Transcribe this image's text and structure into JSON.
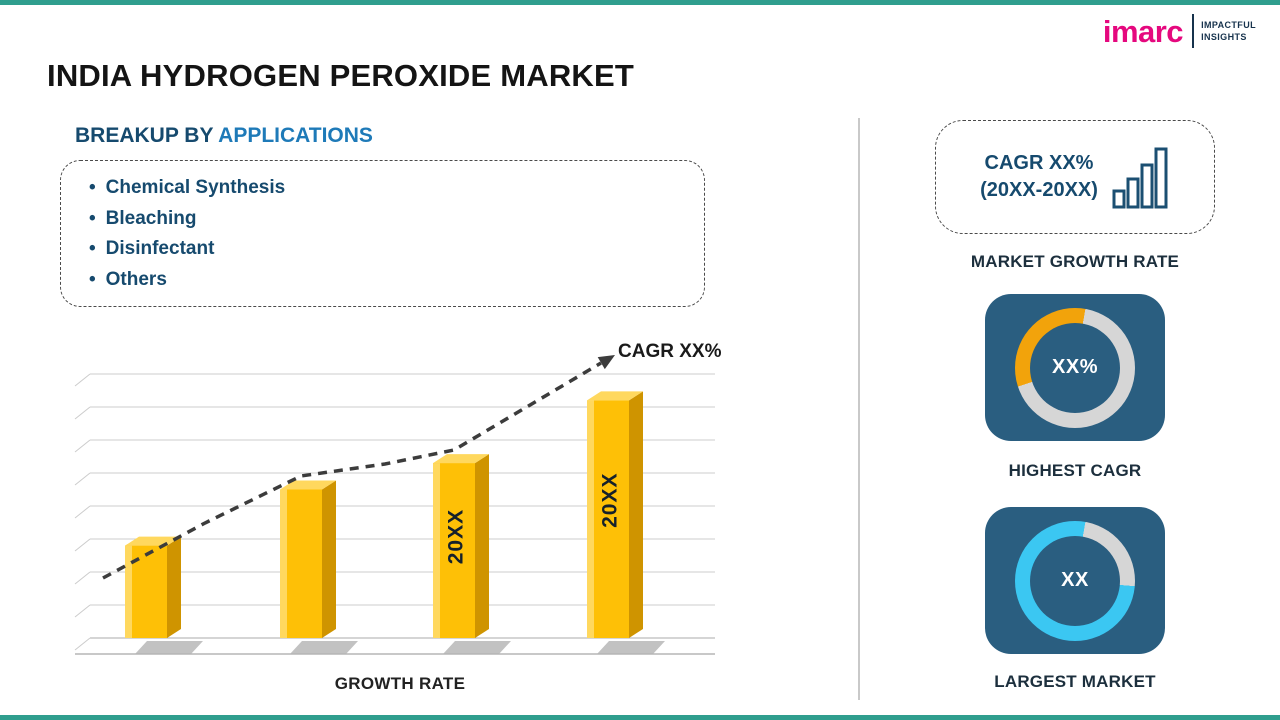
{
  "page": {
    "title": "INDIA HYDROGEN PEROXIDE MARKET"
  },
  "logo": {
    "brand": "imarc",
    "tagline_line1": "IMPACTFUL",
    "tagline_line2": "INSIGHTS"
  },
  "breakup": {
    "heading_prefix": "BREAKUP BY ",
    "heading_highlight": "APPLICATIONS",
    "items": [
      "Chemical Synthesis",
      "Bleaching",
      "Disinfectant",
      "Others"
    ]
  },
  "chart_data": {
    "type": "bar",
    "title": "",
    "xlabel": "GROWTH RATE",
    "ylabel": "",
    "categories": [
      "",
      "",
      "20XX",
      "20XX"
    ],
    "values": [
      28,
      45,
      53,
      72
    ],
    "values_note": "relative heights, no numeric axis shown in source",
    "bar_labels": [
      "",
      "",
      "20XX",
      "20XX"
    ],
    "trend_label": "CAGR XX%",
    "ylim": [
      0,
      80
    ],
    "grid": true,
    "legend": false
  },
  "sidebar": {
    "cagr_box": {
      "line1": "CAGR XX%",
      "line2": "(20XX-20XX)"
    },
    "market_growth_rate_label": "MARKET GROWTH RATE",
    "highest_cagr": {
      "value": "XX%",
      "label": "HIGHEST CAGR",
      "arc_color": "#F2A30B",
      "ring_color": "#D6D6D6",
      "arc_from_deg": 252,
      "arc_sweep_deg": 118
    },
    "largest_market": {
      "value": "XX",
      "label": "LARGEST MARKET",
      "arc_color": "#D6D6D6",
      "ring_color": "#3BC7F2",
      "arc_from_deg": 10,
      "arc_sweep_deg": 85
    }
  },
  "colors": {
    "accent_teal": "#2F9E8E",
    "brand_magenta": "#E5087E",
    "navy": "#164A6E",
    "heading_blue": "#1E7AB8",
    "bar_fill": "#FEC006",
    "bar_side": "#CF9400",
    "bar_highlight": "#FFD85E",
    "bar_label": "#15212B",
    "trend": "#3C3C3C",
    "grid_line": "#CCCCCC",
    "card_bg": "#2A5E80"
  }
}
